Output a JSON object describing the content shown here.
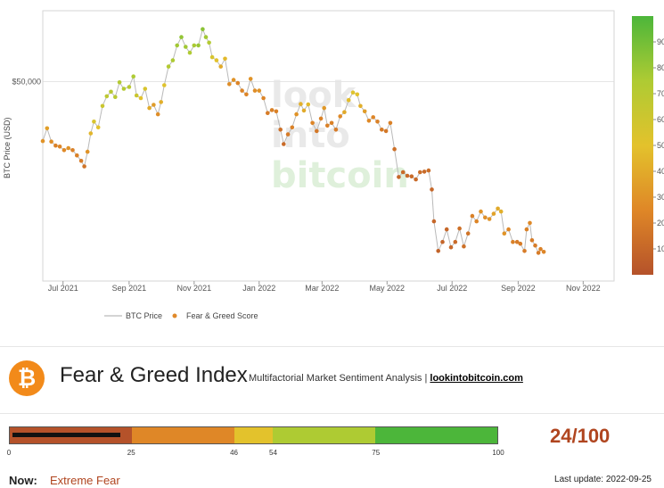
{
  "chart_data": {
    "type": "scatter",
    "ylabel": "BTC Price (USD)",
    "y_scale": "log",
    "ylim": [
      16000,
      75000
    ],
    "y_ticks": [
      {
        "value": 50000,
        "label": "$50,000"
      }
    ],
    "x_ticks": [
      {
        "date": "2021-07-01",
        "label": "Jul 2021"
      },
      {
        "date": "2021-09-01",
        "label": "Sep 2021"
      },
      {
        "date": "2021-11-01",
        "label": "Nov 2021"
      },
      {
        "date": "2022-01-01",
        "label": "Jan 2022"
      },
      {
        "date": "2022-03-01",
        "label": "Mar 2022"
      },
      {
        "date": "2022-05-01",
        "label": "May 2022"
      },
      {
        "date": "2022-07-01",
        "label": "Jul 2022"
      },
      {
        "date": "2022-09-01",
        "label": "Sep 2022"
      },
      {
        "date": "2022-11-01",
        "label": "Nov 2022"
      }
    ],
    "xlim": [
      "2021-06-12",
      "2022-11-30"
    ],
    "colorbar": {
      "min": 0,
      "max": 100,
      "ticks": [
        10,
        20,
        30,
        40,
        50,
        60,
        70,
        80,
        90
      ]
    },
    "legend": {
      "placement": "bottom-left",
      "items": [
        {
          "label": "BTC Price",
          "color": "#aaaaaa"
        },
        {
          "label": "Fear & Greed Score",
          "color": "#e0892a"
        }
      ]
    },
    "watermark": [
      "look",
      "into",
      "bitcoin"
    ],
    "series": [
      {
        "name": "BTC Price",
        "points": [
          [
            "2021-06-12",
            35600,
            30
          ],
          [
            "2021-06-16",
            38300,
            35
          ],
          [
            "2021-06-20",
            35500,
            28
          ],
          [
            "2021-06-24",
            34700,
            22
          ],
          [
            "2021-06-28",
            34500,
            24
          ],
          [
            "2021-07-02",
            33800,
            26
          ],
          [
            "2021-07-06",
            34200,
            30
          ],
          [
            "2021-07-10",
            33800,
            22
          ],
          [
            "2021-07-14",
            32800,
            22
          ],
          [
            "2021-07-18",
            31800,
            20
          ],
          [
            "2021-07-21",
            30800,
            16
          ],
          [
            "2021-07-24",
            33500,
            30
          ],
          [
            "2021-07-27",
            37200,
            45
          ],
          [
            "2021-07-30",
            39800,
            55
          ],
          [
            "2021-08-03",
            38500,
            50
          ],
          [
            "2021-08-07",
            43500,
            62
          ],
          [
            "2021-08-11",
            46000,
            68
          ],
          [
            "2021-08-15",
            47200,
            70
          ],
          [
            "2021-08-19",
            45800,
            70
          ],
          [
            "2021-08-23",
            49800,
            72
          ],
          [
            "2021-08-27",
            48000,
            72
          ],
          [
            "2021-09-01",
            48500,
            70
          ],
          [
            "2021-09-05",
            51500,
            75
          ],
          [
            "2021-09-08",
            46200,
            62
          ],
          [
            "2021-09-12",
            45500,
            50
          ],
          [
            "2021-09-16",
            48000,
            55
          ],
          [
            "2021-09-20",
            43000,
            40
          ],
          [
            "2021-09-24",
            43800,
            34
          ],
          [
            "2021-09-28",
            41500,
            28
          ],
          [
            "2021-10-01",
            44500,
            42
          ],
          [
            "2021-10-04",
            49000,
            52
          ],
          [
            "2021-10-08",
            54500,
            72
          ],
          [
            "2021-10-12",
            56500,
            75
          ],
          [
            "2021-10-16",
            61500,
            78
          ],
          [
            "2021-10-20",
            64500,
            82
          ],
          [
            "2021-10-24",
            61000,
            78
          ],
          [
            "2021-10-28",
            59000,
            74
          ],
          [
            "2021-11-01",
            61500,
            76
          ],
          [
            "2021-11-05",
            61500,
            80
          ],
          [
            "2021-11-09",
            67500,
            84
          ],
          [
            "2021-11-12",
            64500,
            78
          ],
          [
            "2021-11-15",
            62500,
            72
          ],
          [
            "2021-11-18",
            57500,
            56
          ],
          [
            "2021-11-22",
            56500,
            50
          ],
          [
            "2021-11-26",
            54500,
            40
          ],
          [
            "2021-11-30",
            57000,
            46
          ],
          [
            "2021-12-04",
            49300,
            28
          ],
          [
            "2021-12-08",
            50500,
            30
          ],
          [
            "2021-12-12",
            49600,
            24
          ],
          [
            "2021-12-16",
            47500,
            24
          ],
          [
            "2021-12-20",
            46500,
            24
          ],
          [
            "2021-12-24",
            50800,
            30
          ],
          [
            "2021-12-28",
            47500,
            28
          ],
          [
            "2022-01-01",
            47500,
            30
          ],
          [
            "2022-01-05",
            45500,
            24
          ],
          [
            "2022-01-09",
            41800,
            20
          ],
          [
            "2022-01-13",
            42500,
            22
          ],
          [
            "2022-01-17",
            42200,
            22
          ],
          [
            "2022-01-21",
            38000,
            14
          ],
          [
            "2022-01-24",
            35000,
            12
          ],
          [
            "2022-01-28",
            37000,
            20
          ],
          [
            "2022-02-01",
            38500,
            22
          ],
          [
            "2022-02-05",
            41500,
            30
          ],
          [
            "2022-02-09",
            44000,
            42
          ],
          [
            "2022-02-12",
            42400,
            40
          ],
          [
            "2022-02-16",
            43900,
            46
          ],
          [
            "2022-02-20",
            39500,
            24
          ],
          [
            "2022-02-24",
            37700,
            18
          ],
          [
            "2022-02-28",
            40500,
            22
          ],
          [
            "2022-03-03",
            43000,
            32
          ],
          [
            "2022-03-06",
            38900,
            22
          ],
          [
            "2022-03-10",
            39500,
            22
          ],
          [
            "2022-03-14",
            38000,
            20
          ],
          [
            "2022-03-18",
            41000,
            26
          ],
          [
            "2022-03-22",
            42000,
            40
          ],
          [
            "2022-03-26",
            45000,
            48
          ],
          [
            "2022-03-30",
            47000,
            52
          ],
          [
            "2022-04-03",
            46500,
            50
          ],
          [
            "2022-04-06",
            43500,
            42
          ],
          [
            "2022-04-10",
            42200,
            34
          ],
          [
            "2022-04-14",
            40000,
            26
          ],
          [
            "2022-04-18",
            40800,
            24
          ],
          [
            "2022-04-22",
            39800,
            22
          ],
          [
            "2022-04-26",
            38000,
            20
          ],
          [
            "2022-04-30",
            37700,
            18
          ],
          [
            "2022-05-04",
            39500,
            22
          ],
          [
            "2022-05-08",
            34000,
            14
          ],
          [
            "2022-05-12",
            29000,
            10
          ],
          [
            "2022-05-16",
            29800,
            12
          ],
          [
            "2022-05-20",
            29200,
            12
          ],
          [
            "2022-05-24",
            29100,
            12
          ],
          [
            "2022-05-28",
            28600,
            12
          ],
          [
            "2022-06-01",
            29800,
            13
          ],
          [
            "2022-06-05",
            29900,
            12
          ],
          [
            "2022-06-09",
            30100,
            13
          ],
          [
            "2022-06-12",
            27000,
            10
          ],
          [
            "2022-06-14",
            22500,
            10
          ],
          [
            "2022-06-18",
            19000,
            8
          ],
          [
            "2022-06-22",
            20000,
            9
          ],
          [
            "2022-06-26",
            21500,
            10
          ],
          [
            "2022-06-30",
            19400,
            10
          ],
          [
            "2022-07-04",
            20000,
            12
          ],
          [
            "2022-07-08",
            21600,
            14
          ],
          [
            "2022-07-12",
            19500,
            14
          ],
          [
            "2022-07-16",
            21000,
            16
          ],
          [
            "2022-07-20",
            23200,
            22
          ],
          [
            "2022-07-24",
            22500,
            24
          ],
          [
            "2022-07-28",
            23800,
            30
          ],
          [
            "2022-08-01",
            23000,
            28
          ],
          [
            "2022-08-05",
            22800,
            30
          ],
          [
            "2022-08-09",
            23500,
            36
          ],
          [
            "2022-08-13",
            24200,
            40
          ],
          [
            "2022-08-16",
            23800,
            42
          ],
          [
            "2022-08-19",
            21000,
            30
          ],
          [
            "2022-08-23",
            21500,
            25
          ],
          [
            "2022-08-27",
            20000,
            22
          ],
          [
            "2022-08-31",
            20000,
            20
          ],
          [
            "2022-09-03",
            19800,
            20
          ],
          [
            "2022-09-07",
            19000,
            20
          ],
          [
            "2022-09-09",
            21500,
            22
          ],
          [
            "2022-09-12",
            22300,
            26
          ],
          [
            "2022-09-14",
            20200,
            20
          ],
          [
            "2022-09-17",
            19600,
            20
          ],
          [
            "2022-09-20",
            18800,
            20
          ],
          [
            "2022-09-22",
            19200,
            22
          ],
          [
            "2022-09-25",
            18900,
            24
          ]
        ]
      }
    ]
  },
  "header": {
    "logo_glyph": "₿",
    "title": "Fear & Greed Index",
    "subtitle": "Multifactorial Market Sentiment Analysis |",
    "link": "lookintobitcoin.com"
  },
  "gauge": {
    "value": 24,
    "segments": [
      {
        "from": 0,
        "to": 25,
        "color": "#b5522a"
      },
      {
        "from": 25,
        "to": 46,
        "color": "#df8727"
      },
      {
        "from": 46,
        "to": 54,
        "color": "#e3c22c"
      },
      {
        "from": 54,
        "to": 75,
        "color": "#aecb33"
      },
      {
        "from": 75,
        "to": 100,
        "color": "#4cb63a"
      }
    ],
    "ticks": [
      "0",
      "25",
      "46",
      "54",
      "75",
      "100"
    ]
  },
  "score_text": "24/100",
  "status": {
    "label": "Now:",
    "value": "Extreme Fear"
  },
  "last_update": "Last update: 2022-09-25"
}
